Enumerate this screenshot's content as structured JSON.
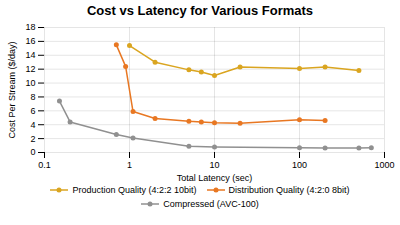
{
  "chart_data": {
    "type": "line",
    "title": "Cost vs Latency for Various Formats",
    "xlabel": "Total Latency (sec)",
    "ylabel": "Cost Per Stream ($/day)",
    "log": "x",
    "xlim": [
      0.1,
      1000
    ],
    "xticks": [
      0.1,
      1,
      10,
      100,
      1000
    ],
    "ylim": [
      0,
      18
    ],
    "yticks": [
      0,
      2,
      4,
      6,
      8,
      10,
      12,
      14,
      16,
      18
    ],
    "grid": true,
    "legend": "bottom",
    "marker": "circle",
    "series": [
      {
        "name": "Production Quality (4:2:2 10bit)",
        "color": "#DAA520",
        "x": [
          1.0,
          2.0,
          5.0,
          7.0,
          10.0,
          20.0,
          100.0,
          200.0,
          500.0
        ],
        "values": [
          15.4,
          13.0,
          11.9,
          11.6,
          11.1,
          12.3,
          12.1,
          12.3,
          11.8
        ]
      },
      {
        "name": "Distribution Quality (4:2:0 8bit)",
        "color": "#E87722",
        "x": [
          0.7,
          0.9,
          1.1,
          2.0,
          5.0,
          7.0,
          10.0,
          20.0,
          100.0,
          200.0
        ],
        "values": [
          15.5,
          12.4,
          5.9,
          4.9,
          4.5,
          4.4,
          4.3,
          4.2,
          4.7,
          4.6
        ]
      },
      {
        "name": "Compressed (AVC-100)",
        "color": "#909090",
        "x": [
          0.15,
          0.2,
          0.7,
          1.1,
          5.0,
          10.0,
          100.0,
          200.0,
          500.0,
          700.0
        ],
        "values": [
          7.4,
          4.4,
          2.6,
          2.1,
          0.9,
          0.8,
          0.7,
          0.65,
          0.65,
          0.7
        ]
      }
    ]
  }
}
